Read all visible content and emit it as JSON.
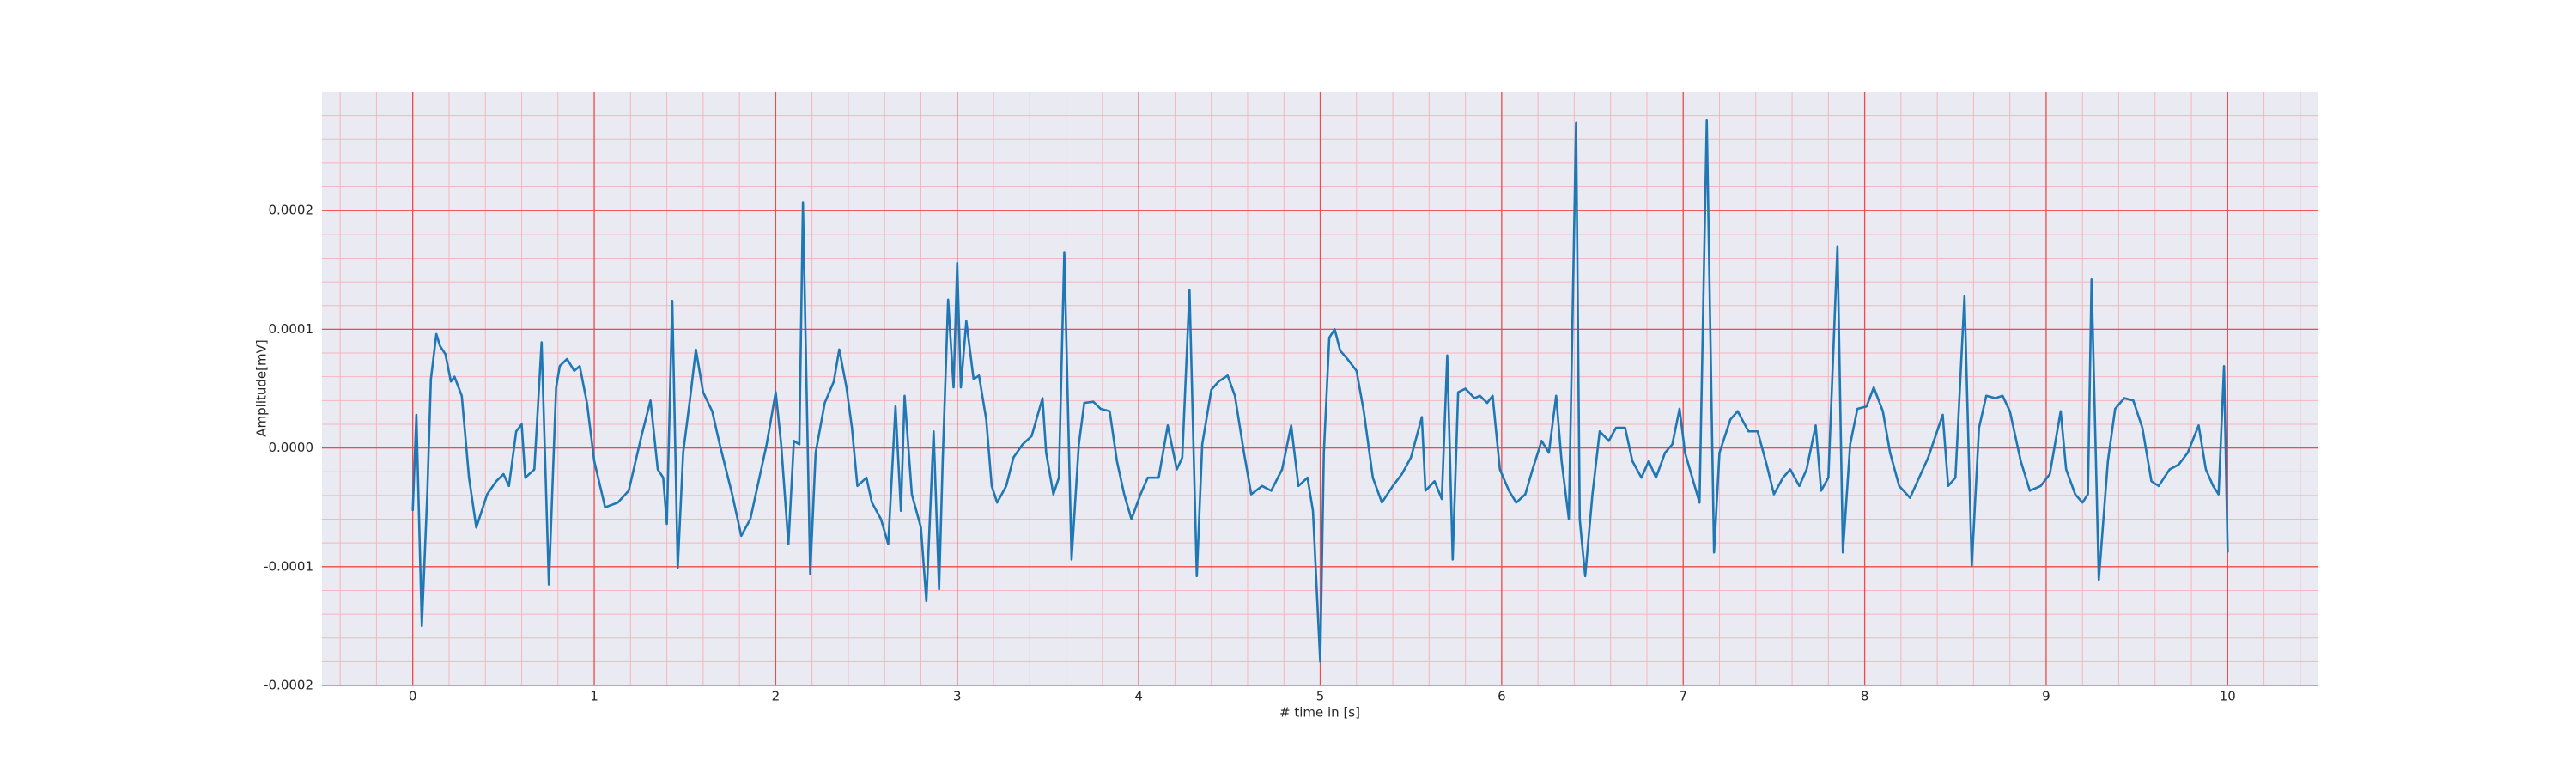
{
  "chart_data": {
    "type": "line",
    "xlabel": "# time in [s]",
    "ylabel": "Amplitude[mV]",
    "x": [
      0,
      0.02,
      0.05,
      0.08,
      0.1,
      0.13,
      0.15,
      0.18,
      0.21,
      0.23,
      0.27,
      0.31,
      0.35,
      0.41,
      0.46,
      0.5,
      0.53,
      0.57,
      0.6,
      0.62,
      0.67,
      0.71,
      0.75,
      0.79,
      0.81,
      0.85,
      0.89,
      0.92,
      0.96,
      1.0,
      1.06,
      1.13,
      1.19,
      1.26,
      1.31,
      1.35,
      1.38,
      1.4,
      1.43,
      1.46,
      1.49,
      1.53,
      1.56,
      1.6,
      1.65,
      1.69,
      1.76,
      1.81,
      1.86,
      1.91,
      1.95,
      2.0,
      2.03,
      2.07,
      2.1,
      2.13,
      2.15,
      2.19,
      2.22,
      2.27,
      2.32,
      2.35,
      2.39,
      2.42,
      2.45,
      2.5,
      2.53,
      2.58,
      2.62,
      2.66,
      2.69,
      2.71,
      2.75,
      2.8,
      2.83,
      2.87,
      2.9,
      2.92,
      2.95,
      2.98,
      3.0,
      3.02,
      3.05,
      3.09,
      3.12,
      3.16,
      3.19,
      3.22,
      3.27,
      3.31,
      3.36,
      3.41,
      3.47,
      3.49,
      3.53,
      3.56,
      3.59,
      3.63,
      3.67,
      3.7,
      3.75,
      3.79,
      3.84,
      3.88,
      3.92,
      3.96,
      4.01,
      4.05,
      4.11,
      4.16,
      4.21,
      4.24,
      4.28,
      4.32,
      4.35,
      4.4,
      4.44,
      4.49,
      4.53,
      4.58,
      4.62,
      4.68,
      4.73,
      4.79,
      4.84,
      4.88,
      4.93,
      4.96,
      5.0,
      5.02,
      5.05,
      5.08,
      5.11,
      5.15,
      5.2,
      5.24,
      5.29,
      5.34,
      5.4,
      5.45,
      5.5,
      5.56,
      5.58,
      5.63,
      5.67,
      5.7,
      5.73,
      5.76,
      5.8,
      5.85,
      5.88,
      5.92,
      5.95,
      5.99,
      6.04,
      6.08,
      6.13,
      6.17,
      6.22,
      6.26,
      6.3,
      6.33,
      6.37,
      6.41,
      6.43,
      6.46,
      6.5,
      6.54,
      6.59,
      6.63,
      6.68,
      6.72,
      6.77,
      6.81,
      6.85,
      6.9,
      6.94,
      6.98,
      7.01,
      7.05,
      7.09,
      7.13,
      7.17,
      7.2,
      7.26,
      7.3,
      7.36,
      7.41,
      7.46,
      7.5,
      7.55,
      7.59,
      7.64,
      7.68,
      7.73,
      7.76,
      7.8,
      7.85,
      7.88,
      7.92,
      7.96,
      8.01,
      8.05,
      8.1,
      8.14,
      8.19,
      8.25,
      8.3,
      8.35,
      8.43,
      8.46,
      8.5,
      8.55,
      8.59,
      8.63,
      8.67,
      8.72,
      8.76,
      8.8,
      8.86,
      8.91,
      8.97,
      9.02,
      9.08,
      9.11,
      9.16,
      9.2,
      9.23,
      9.25,
      9.29,
      9.34,
      9.38,
      9.43,
      9.48,
      9.53,
      9.58,
      9.62,
      9.68,
      9.73,
      9.78,
      9.84,
      9.88,
      9.92,
      9.95,
      9.98,
      10.0
    ],
    "series": [
      {
        "color": "#1f77b4",
        "values": [
          -5.3e-05,
          2.8e-05,
          -0.00015,
          -3.9e-05,
          5.8e-05,
          9.6e-05,
          8.6e-05,
          7.9e-05,
          5.6e-05,
          6e-05,
          4.4e-05,
          -2.5e-05,
          -6.7e-05,
          -3.9e-05,
          -2.8e-05,
          -2.2e-05,
          -3.2e-05,
          1.4e-05,
          2e-05,
          -2.5e-05,
          -1.8e-05,
          8.9e-05,
          -0.000115,
          5.1e-05,
          6.9e-05,
          7.5e-05,
          6.5e-05,
          6.9e-05,
          3.8e-05,
          -1.1e-05,
          -5e-05,
          -4.6e-05,
          -3.6e-05,
          1e-05,
          4e-05,
          -1.8e-05,
          -2.5e-05,
          -6.4e-05,
          0.000124,
          -0.000101,
          -4e-06,
          4.4e-05,
          8.3e-05,
          4.7e-05,
          3.1e-05,
          4e-06,
          -3.9e-05,
          -7.4e-05,
          -6e-05,
          -2.5e-05,
          3e-06,
          4.7e-05,
          3e-06,
          -8.1e-05,
          6e-06,
          3e-06,
          0.000207,
          -0.000106,
          -4e-06,
          3.8e-05,
          5.6e-05,
          8.3e-05,
          5.1e-05,
          1.7e-05,
          -3.2e-05,
          -2.5e-05,
          -4.6e-05,
          -6e-05,
          -8.1e-05,
          3.5e-05,
          -5.3e-05,
          4.4e-05,
          -3.9e-05,
          -6.7e-05,
          -0.000129,
          1.4e-05,
          -0.000119,
          -1.1e-05,
          0.000125,
          5.1e-05,
          0.000156,
          5.1e-05,
          0.000107,
          5.8e-05,
          6.1e-05,
          2.4e-05,
          -3.2e-05,
          -4.6e-05,
          -3.2e-05,
          -8e-06,
          3e-06,
          1e-05,
          4.2e-05,
          -4e-06,
          -3.9e-05,
          -2.5e-05,
          0.000165,
          -9.4e-05,
          3e-06,
          3.8e-05,
          3.9e-05,
          3.3e-05,
          3.1e-05,
          -1.1e-05,
          -3.9e-05,
          -6e-05,
          -3.9e-05,
          -2.5e-05,
          -2.5e-05,
          1.9e-05,
          -1.8e-05,
          -8e-06,
          0.000133,
          -0.000108,
          3e-06,
          4.9e-05,
          5.6e-05,
          6.1e-05,
          4.4e-05,
          -4e-06,
          -3.9e-05,
          -3.2e-05,
          -3.6e-05,
          -1.8e-05,
          1.9e-05,
          -3.2e-05,
          -2.5e-05,
          -5.3e-05,
          -0.00018,
          -4e-06,
          9.3e-05,
          0.0001,
          8.2e-05,
          7.5e-05,
          6.5e-05,
          3.1e-05,
          -2.5e-05,
          -4.6e-05,
          -3.2e-05,
          -2.2e-05,
          -8e-06,
          2.6e-05,
          -3.6e-05,
          -2.8e-05,
          -4.3e-05,
          7.8e-05,
          -9.4e-05,
          4.7e-05,
          5e-05,
          4.2e-05,
          4.4e-05,
          3.8e-05,
          4.4e-05,
          -1.8e-05,
          -3.6e-05,
          -4.6e-05,
          -3.9e-05,
          -1.8e-05,
          6e-06,
          -4e-06,
          4.4e-05,
          -1.1e-05,
          -6e-05,
          0.000274,
          -6e-05,
          -0.000108,
          -3.9e-05,
          1.4e-05,
          6e-06,
          1.7e-05,
          1.7e-05,
          -1.1e-05,
          -2.5e-05,
          -1.1e-05,
          -2.5e-05,
          -4e-06,
          3e-06,
          3.3e-05,
          -4e-06,
          -2.5e-05,
          -4.6e-05,
          0.000276,
          -8.8e-05,
          -4e-06,
          2.4e-05,
          3.1e-05,
          1.4e-05,
          1.4e-05,
          -1.4e-05,
          -3.9e-05,
          -2.5e-05,
          -1.8e-05,
          -3.2e-05,
          -1.8e-05,
          1.9e-05,
          -3.6e-05,
          -2.5e-05,
          0.00017,
          -8.8e-05,
          3e-06,
          3.3e-05,
          3.5e-05,
          5.1e-05,
          3.1e-05,
          -4e-06,
          -3.2e-05,
          -4.2e-05,
          -2.5e-05,
          -8e-06,
          2.8e-05,
          -3.2e-05,
          -2.5e-05,
          0.000128,
          -9.9e-05,
          1.7e-05,
          4.4e-05,
          4.2e-05,
          4.4e-05,
          3.1e-05,
          -1.1e-05,
          -3.6e-05,
          -3.2e-05,
          -2.2e-05,
          3.1e-05,
          -1.8e-05,
          -3.9e-05,
          -4.6e-05,
          -3.9e-05,
          0.000142,
          -0.000111,
          -1.1e-05,
          3.3e-05,
          4.2e-05,
          4e-05,
          1.7e-05,
          -2.8e-05,
          -3.2e-05,
          -1.8e-05,
          -1.4e-05,
          -4e-06,
          1.9e-05,
          -1.8e-05,
          -3.2e-05,
          -3.9e-05,
          6.9e-05,
          -8.8e-05
        ]
      }
    ],
    "xlim": [
      -0.5,
      10.5
    ],
    "ylim": [
      -0.0002,
      0.0003
    ],
    "xticks": [
      0,
      1,
      2,
      3,
      4,
      5,
      6,
      7,
      8,
      9,
      10
    ],
    "yticks": [
      -0.0002,
      -0.0001,
      {
        "value": 0,
        "label": "0.0000"
      },
      0.0001,
      0.0002
    ],
    "grid": true,
    "grid_color": "#f04a4a",
    "minor_grid": true,
    "minor_grid_color": "#f7b5bd",
    "background": "#eaeaf2"
  }
}
